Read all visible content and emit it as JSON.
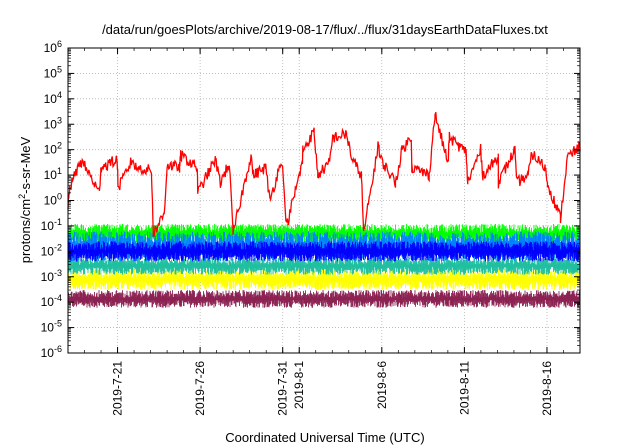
{
  "chart_data": {
    "type": "line",
    "title": "/data/run/goesPlots/archive/2019-08-17/flux/../flux/31daysEarthDataFluxes.txt",
    "xlabel": "Coordinated Universal Time (UTC)",
    "ylabel": "protons/cm²-s-sr-MeV",
    "ylabel_parts": {
      "base": "protons/cm",
      "sup": "2",
      "rest": "-s-sr-MeV"
    },
    "yscale": "log",
    "ylim_exp": [
      -6,
      6
    ],
    "ytick_exponents": [
      -6,
      -5,
      -4,
      -3,
      -2,
      -1,
      0,
      1,
      2,
      3,
      4,
      5,
      6
    ],
    "ytick_base": "10",
    "xlim": [
      "2019-07-18",
      "2019-08-18"
    ],
    "xticks": [
      {
        "date": "2019-07-21",
        "label": "2019-7-21"
      },
      {
        "date": "2019-07-26",
        "label": "2019-7-26"
      },
      {
        "date": "2019-07-31",
        "label": "2019-7-31"
      },
      {
        "date": "2019-08-01",
        "label": "2019-8-1"
      },
      {
        "date": "2019-08-06",
        "label": "2019-8-6"
      },
      {
        "date": "2019-08-11",
        "label": "2019-8-11"
      },
      {
        "date": "2019-08-16",
        "label": "2019-8-16"
      }
    ],
    "grid": true,
    "legend": "none",
    "series": [
      {
        "color": "#8b2252",
        "level_range": [
          6e-05,
          0.0003
        ]
      },
      {
        "color": "#ffff00",
        "level_range": [
          0.0003,
          0.002
        ]
      },
      {
        "color": "#1fbf9f",
        "level_range": [
          0.0012,
          0.006
        ]
      },
      {
        "color": "#00ff00",
        "level_range": [
          0.02,
          0.12
        ]
      },
      {
        "color": "#0080ff",
        "level_range": [
          0.004,
          0.06
        ]
      },
      {
        "color": "#0000ff",
        "level_range": [
          0.004,
          0.025
        ]
      },
      {
        "color": "#ff0000",
        "points": [
          [
            "2019-07-18",
            3
          ],
          [
            "2019-07-18",
            0.5
          ],
          [
            "2019-07-19",
            20
          ],
          [
            "2019-07-19",
            35
          ],
          [
            "2019-07-20",
            2
          ],
          [
            "2019-07-20",
            20
          ],
          [
            "2019-07-21",
            40
          ],
          [
            "2019-07-21",
            3
          ],
          [
            "2019-07-22",
            20
          ],
          [
            "2019-07-22",
            40
          ],
          [
            "2019-07-23",
            0.05
          ],
          [
            "2019-07-23",
            15
          ],
          [
            "2019-07-24",
            25
          ],
          [
            "2019-07-24",
            0.3
          ],
          [
            "2019-07-25",
            20
          ],
          [
            "2019-07-25",
            60
          ],
          [
            "2019-07-26",
            2
          ],
          [
            "2019-07-26",
            20
          ],
          [
            "2019-07-27",
            40
          ],
          [
            "2019-07-27",
            5
          ],
          [
            "2019-07-28",
            30
          ],
          [
            "2019-07-28",
            0.05
          ],
          [
            "2019-07-29",
            10
          ],
          [
            "2019-07-29",
            60
          ],
          [
            "2019-07-30",
            1
          ],
          [
            "2019-07-30",
            20
          ],
          [
            "2019-07-31",
            40
          ],
          [
            "2019-07-31",
            0.1
          ],
          [
            "2019-08-01",
            30
          ],
          [
            "2019-08-01",
            100
          ],
          [
            "2019-08-02",
            10
          ],
          [
            "2019-08-02",
            500
          ],
          [
            "2019-08-03",
            30
          ],
          [
            "2019-08-03",
            300
          ],
          [
            "2019-08-04",
            40
          ],
          [
            "2019-08-04",
            400
          ],
          [
            "2019-08-05",
            10
          ],
          [
            "2019-08-05",
            0.05
          ],
          [
            "2019-08-06",
            50
          ],
          [
            "2019-08-06",
            200
          ],
          [
            "2019-08-07",
            5
          ],
          [
            "2019-08-07",
            100
          ],
          [
            "2019-08-08",
            20
          ],
          [
            "2019-08-08",
            300
          ],
          [
            "2019-08-09",
            10
          ],
          [
            "2019-08-09",
            2500
          ],
          [
            "2019-08-10",
            30
          ],
          [
            "2019-08-10",
            300
          ],
          [
            "2019-08-11",
            5
          ],
          [
            "2019-08-11",
            80
          ],
          [
            "2019-08-12",
            10
          ],
          [
            "2019-08-12",
            100
          ],
          [
            "2019-08-13",
            5
          ],
          [
            "2019-08-13",
            50
          ],
          [
            "2019-08-14",
            5
          ],
          [
            "2019-08-14",
            100
          ],
          [
            "2019-08-15",
            10
          ],
          [
            "2019-08-15",
            70
          ],
          [
            "2019-08-16",
            5
          ],
          [
            "2019-08-16",
            20
          ],
          [
            "2019-08-17",
            0.2
          ],
          [
            "2019-08-17",
            50
          ],
          [
            "2019-08-18",
            150
          ]
        ]
      }
    ]
  }
}
